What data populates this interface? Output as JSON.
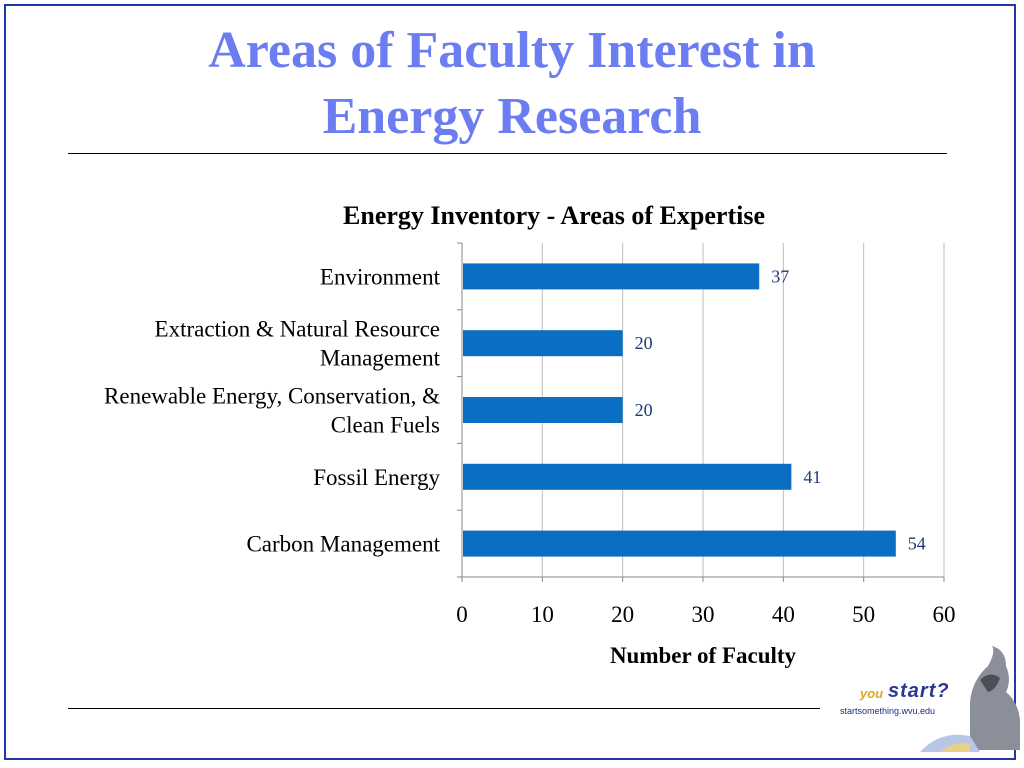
{
  "slide": {
    "title_line1": "Areas of Faculty Interest in",
    "title_line2": "Energy Research"
  },
  "footer": {
    "logo_you": "you",
    "logo_start": "start?",
    "logo_url": "startsomething.wvu.edu",
    "portrait_icon": "statue-portrait-icon"
  },
  "chart_data": {
    "type": "bar",
    "orientation": "horizontal",
    "title": "Energy Inventory - Areas of Expertise",
    "xlabel": "Number of Faculty",
    "ylabel": "",
    "categories": [
      [
        "Environment"
      ],
      [
        "Extraction & Natural Resource",
        "Management"
      ],
      [
        "Renewable Energy, Conservation, &",
        "Clean Fuels"
      ],
      [
        "Fossil Energy"
      ],
      [
        "Carbon Management"
      ]
    ],
    "values": [
      37,
      20,
      20,
      41,
      54
    ],
    "data_labels": [
      "37",
      "20",
      "20",
      "41",
      "54"
    ],
    "xlim": [
      0,
      60
    ],
    "xticks": [
      "0",
      "10",
      "20",
      "30",
      "40",
      "50",
      "60"
    ],
    "grid": true,
    "bar_color": "#0a6fc2",
    "label_color": "#1f3a7a"
  }
}
